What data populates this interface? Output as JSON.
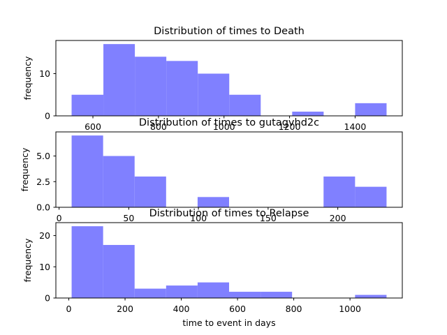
{
  "chart_data": [
    {
      "type": "bar",
      "title": "Distribution of times to Death",
      "xlabel": "",
      "ylabel": "frequency",
      "bar_color": "#8080ff",
      "bins": [
        {
          "x0": 535,
          "x1": 632,
          "count": 5
        },
        {
          "x0": 632,
          "x1": 728,
          "count": 17
        },
        {
          "x0": 728,
          "x1": 824,
          "count": 14
        },
        {
          "x0": 824,
          "x1": 920,
          "count": 13
        },
        {
          "x0": 920,
          "x1": 1016,
          "count": 10
        },
        {
          "x0": 1016,
          "x1": 1112,
          "count": 5
        },
        {
          "x0": 1112,
          "x1": 1208,
          "count": 0
        },
        {
          "x0": 1208,
          "x1": 1304,
          "count": 1
        },
        {
          "x0": 1304,
          "x1": 1400,
          "count": 0
        },
        {
          "x0": 1400,
          "x1": 1496,
          "count": 3
        }
      ],
      "xlim": [
        487,
        1544
      ],
      "ylim": [
        0,
        17.85
      ],
      "xticks": [
        600,
        800,
        1000,
        1200,
        1400
      ],
      "yticks": [
        0,
        10
      ]
    },
    {
      "type": "bar",
      "title": "Distribution of times to gutagvhd2c",
      "xlabel": "",
      "ylabel": "frequency",
      "bar_color": "#8080ff",
      "bins": [
        {
          "x0": 9,
          "x1": 31.6,
          "count": 7
        },
        {
          "x0": 31.6,
          "x1": 54.2,
          "count": 5
        },
        {
          "x0": 54.2,
          "x1": 76.8,
          "count": 3
        },
        {
          "x0": 76.8,
          "x1": 99.4,
          "count": 0
        },
        {
          "x0": 99.4,
          "x1": 122,
          "count": 1
        },
        {
          "x0": 122,
          "x1": 144.6,
          "count": 0
        },
        {
          "x0": 144.6,
          "x1": 167.2,
          "count": 0
        },
        {
          "x0": 167.2,
          "x1": 189.8,
          "count": 0
        },
        {
          "x0": 189.8,
          "x1": 212.4,
          "count": 3
        },
        {
          "x0": 212.4,
          "x1": 235,
          "count": 2
        }
      ],
      "xlim": [
        -2.3,
        246.3
      ],
      "ylim": [
        0,
        7.35
      ],
      "xticks": [
        0,
        50,
        100,
        150,
        200
      ],
      "yticks": [
        "0.0",
        "2.5",
        "5.0"
      ]
    },
    {
      "type": "bar",
      "title": "Distribution of times to Relapse",
      "xlabel": "time to event in days",
      "ylabel": "frequency",
      "bar_color": "#8080ff",
      "bins": [
        {
          "x0": 10,
          "x1": 122,
          "count": 23
        },
        {
          "x0": 122,
          "x1": 234,
          "count": 17
        },
        {
          "x0": 234,
          "x1": 346,
          "count": 3
        },
        {
          "x0": 346,
          "x1": 458,
          "count": 4
        },
        {
          "x0": 458,
          "x1": 570,
          "count": 5
        },
        {
          "x0": 570,
          "x1": 682,
          "count": 2
        },
        {
          "x0": 682,
          "x1": 794,
          "count": 2
        },
        {
          "x0": 794,
          "x1": 906,
          "count": 0
        },
        {
          "x0": 906,
          "x1": 1018,
          "count": 0
        },
        {
          "x0": 1018,
          "x1": 1130,
          "count": 1
        }
      ],
      "xlim": [
        -46,
        1186
      ],
      "ylim": [
        0,
        24.15
      ],
      "xticks": [
        0,
        200,
        400,
        600,
        800,
        1000
      ],
      "yticks": [
        0,
        10,
        20
      ]
    }
  ]
}
